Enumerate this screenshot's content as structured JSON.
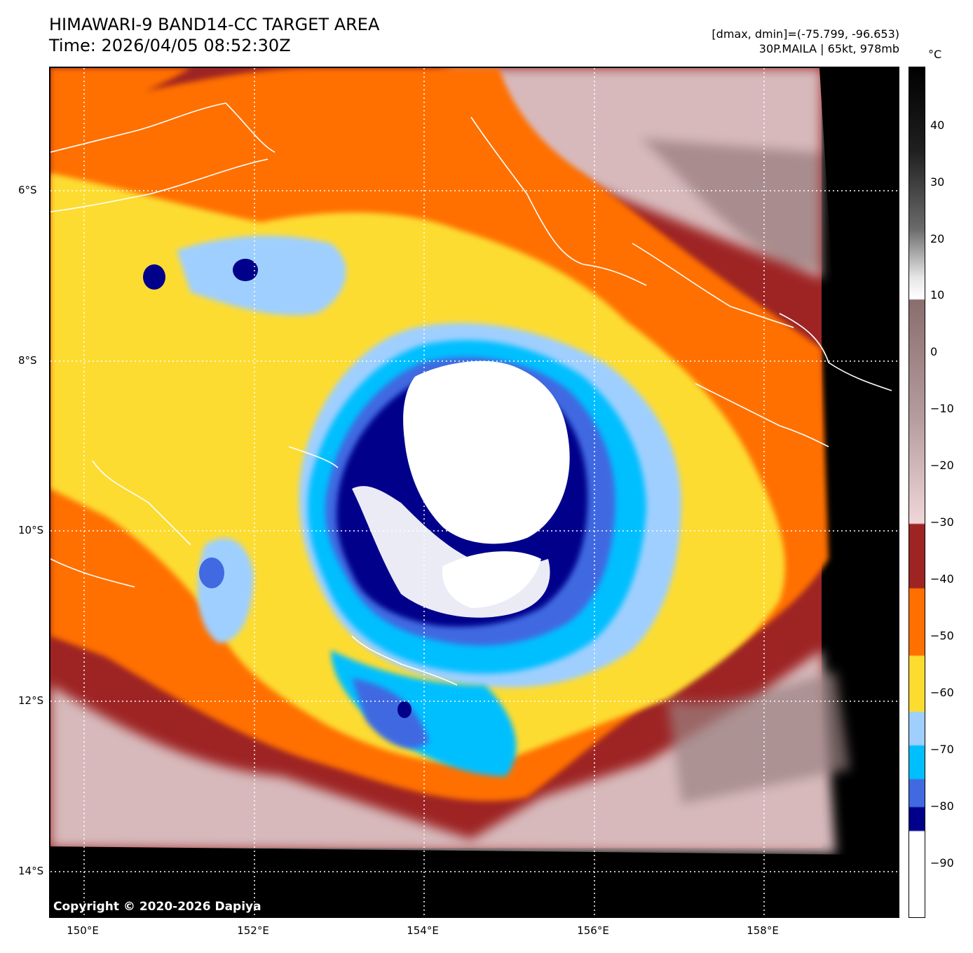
{
  "header": {
    "title": "HIMAWARI-9 BAND14-CC TARGET AREA",
    "time": "Time: 2026/04/05 08:52:30Z",
    "dmax_dmin": "[dmax, dmin]=(-75.799, -96.653)",
    "storm": "30P.MAILA | 65kt, 978mb"
  },
  "map": {
    "copyright": "Copyright © 2020-2026 Dapiya",
    "lat_labels": [
      "6°S",
      "8°S",
      "10°S",
      "12°S",
      "14°S"
    ],
    "lon_labels": [
      "150°E",
      "152°E",
      "154°E",
      "156°E",
      "158°E"
    ],
    "grid": "dotted white"
  },
  "colorbar": {
    "unit": "°C",
    "labels": [
      "40",
      "30",
      "20",
      "10",
      "0",
      "−10",
      "−20",
      "−30",
      "−40",
      "−50",
      "−60",
      "−70",
      "−80",
      "−90"
    ],
    "colors": {
      "warm_black": "#000000",
      "warm_white": "#ffffff",
      "brown_gray": "#8a6e6e",
      "pink": "#f0d6d8",
      "dark_red": "#9e2424",
      "orange": "#ff7000",
      "yellow": "#fddc30",
      "light_blue": "#9fcfff",
      "cyan": "#00bfff",
      "royal_blue": "#4169e1",
      "navy": "#00008b",
      "white_cold": "#ffffff"
    }
  }
}
